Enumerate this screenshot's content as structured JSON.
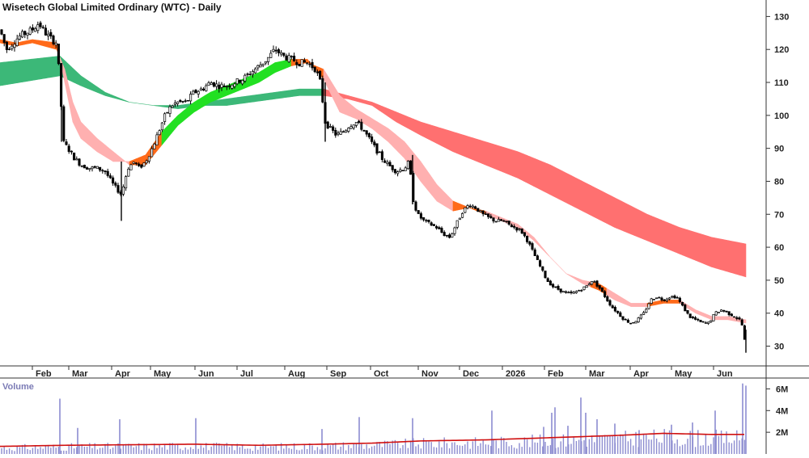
{
  "chart_data": {
    "type": "line",
    "title": "Wisetech Global Limited Ordinary (WTC) - Daily",
    "volume_label": "Volume",
    "price_axis": {
      "ticks": [
        30,
        40,
        50,
        60,
        70,
        80,
        90,
        100,
        110,
        120,
        130
      ],
      "ylim": [
        24,
        135
      ]
    },
    "volume_axis": {
      "ticks": [
        2000000,
        4000000,
        6000000
      ],
      "tick_labels": [
        "2M",
        "4M",
        "6M"
      ],
      "ylim": [
        0,
        7000000
      ]
    },
    "x_axis": {
      "labels": [
        "Feb",
        "Mar",
        "Apr",
        "May",
        "Jun",
        "Jul",
        "Aug",
        "Sep",
        "Oct",
        "Nov",
        "Dec",
        "2026",
        "Feb",
        "Mar",
        "Apr",
        "May",
        "Jun"
      ]
    },
    "colors": {
      "short_ribbon_up": "#22e022",
      "short_ribbon_down": "#ff6a1a",
      "short_ribbon_neutral": "#ffb0b0",
      "long_ribbon_up": "#3cb878",
      "long_ribbon_down": "#ff7070",
      "volume_bar": "#8c8cd0",
      "volume_ma": "#d01010",
      "candle": "#000000"
    },
    "price_keypoints": [
      [
        0,
        126
      ],
      [
        8,
        120
      ],
      [
        16,
        122
      ],
      [
        24,
        124
      ],
      [
        32,
        125
      ],
      [
        40,
        126
      ],
      [
        48,
        128
      ],
      [
        56,
        125
      ],
      [
        64,
        123
      ],
      [
        70,
        122
      ],
      [
        74,
        110
      ],
      [
        78,
        92
      ],
      [
        84,
        90
      ],
      [
        92,
        87
      ],
      [
        100,
        85
      ],
      [
        110,
        84
      ],
      [
        120,
        84
      ],
      [
        130,
        83
      ],
      [
        140,
        79
      ],
      [
        150,
        76
      ],
      [
        158,
        84
      ],
      [
        166,
        86
      ],
      [
        172,
        84
      ],
      [
        180,
        86
      ],
      [
        188,
        90
      ],
      [
        196,
        95
      ],
      [
        204,
        100
      ],
      [
        212,
        103
      ],
      [
        220,
        104
      ],
      [
        230,
        104
      ],
      [
        240,
        107
      ],
      [
        250,
        108
      ],
      [
        260,
        110
      ],
      [
        270,
        109
      ],
      [
        280,
        109
      ],
      [
        290,
        110
      ],
      [
        300,
        111
      ],
      [
        310,
        113
      ],
      [
        320,
        115
      ],
      [
        330,
        117
      ],
      [
        340,
        120
      ],
      [
        350,
        118
      ],
      [
        360,
        117
      ],
      [
        370,
        116
      ],
      [
        380,
        116
      ],
      [
        390,
        114
      ],
      [
        396,
        110
      ],
      [
        402,
        98
      ],
      [
        408,
        96
      ],
      [
        416,
        94
      ],
      [
        424,
        95
      ],
      [
        432,
        97
      ],
      [
        440,
        98
      ],
      [
        448,
        96
      ],
      [
        456,
        93
      ],
      [
        464,
        90
      ],
      [
        472,
        87
      ],
      [
        480,
        85
      ],
      [
        490,
        83
      ],
      [
        500,
        84
      ],
      [
        506,
        86
      ],
      [
        510,
        75
      ],
      [
        516,
        70
      ],
      [
        524,
        68
      ],
      [
        532,
        67
      ],
      [
        540,
        66
      ],
      [
        548,
        64
      ],
      [
        556,
        63
      ],
      [
        564,
        67
      ],
      [
        572,
        71
      ],
      [
        580,
        73
      ],
      [
        588,
        72
      ],
      [
        596,
        70
      ],
      [
        604,
        69
      ],
      [
        612,
        68
      ],
      [
        620,
        68
      ],
      [
        628,
        67
      ],
      [
        636,
        66
      ],
      [
        644,
        65
      ],
      [
        652,
        62
      ],
      [
        660,
        58
      ],
      [
        668,
        54
      ],
      [
        676,
        50
      ],
      [
        684,
        48
      ],
      [
        692,
        47
      ],
      [
        700,
        46
      ],
      [
        708,
        46
      ],
      [
        716,
        47
      ],
      [
        724,
        48
      ],
      [
        732,
        50
      ],
      [
        740,
        48
      ],
      [
        748,
        45
      ],
      [
        756,
        42
      ],
      [
        764,
        40
      ],
      [
        772,
        38
      ],
      [
        780,
        37
      ],
      [
        788,
        38
      ],
      [
        796,
        40
      ],
      [
        804,
        44
      ],
      [
        812,
        45
      ],
      [
        820,
        44
      ],
      [
        828,
        45
      ],
      [
        836,
        45
      ],
      [
        844,
        42
      ],
      [
        852,
        39
      ],
      [
        860,
        38
      ],
      [
        868,
        37
      ],
      [
        876,
        37
      ],
      [
        884,
        40
      ],
      [
        892,
        41
      ],
      [
        900,
        40
      ],
      [
        908,
        39
      ],
      [
        914,
        38
      ],
      [
        918,
        36
      ],
      [
        922,
        29
      ]
    ],
    "short_ribbon_upper": [
      [
        0,
        123
      ],
      [
        20,
        122
      ],
      [
        40,
        123
      ],
      [
        70,
        122
      ],
      [
        80,
        110
      ],
      [
        90,
        98
      ],
      [
        100,
        93
      ],
      [
        120,
        89
      ],
      [
        140,
        86
      ],
      [
        160,
        86
      ],
      [
        180,
        88
      ],
      [
        200,
        95
      ],
      [
        220,
        100
      ],
      [
        240,
        104
      ],
      [
        260,
        107
      ],
      [
        280,
        109
      ],
      [
        300,
        111
      ],
      [
        320,
        113
      ],
      [
        340,
        116
      ],
      [
        360,
        117
      ],
      [
        380,
        117
      ],
      [
        400,
        111
      ],
      [
        420,
        101
      ],
      [
        440,
        99
      ],
      [
        460,
        96
      ],
      [
        480,
        92
      ],
      [
        500,
        87
      ],
      [
        520,
        80
      ],
      [
        540,
        74
      ],
      [
        560,
        71
      ],
      [
        580,
        72
      ],
      [
        600,
        71
      ],
      [
        620,
        69
      ],
      [
        640,
        67
      ],
      [
        660,
        63
      ],
      [
        680,
        57
      ],
      [
        700,
        52
      ],
      [
        720,
        50
      ],
      [
        740,
        49
      ],
      [
        760,
        46
      ],
      [
        780,
        43
      ],
      [
        800,
        43
      ],
      [
        820,
        44
      ],
      [
        840,
        44
      ],
      [
        860,
        41
      ],
      [
        880,
        39
      ],
      [
        900,
        39
      ],
      [
        922,
        38
      ]
    ],
    "short_ribbon_lower": [
      [
        0,
        122
      ],
      [
        20,
        121
      ],
      [
        40,
        122
      ],
      [
        70,
        120
      ],
      [
        80,
        114
      ],
      [
        90,
        104
      ],
      [
        100,
        98
      ],
      [
        120,
        93
      ],
      [
        140,
        89
      ],
      [
        160,
        85
      ],
      [
        180,
        85
      ],
      [
        200,
        91
      ],
      [
        220,
        97
      ],
      [
        240,
        101
      ],
      [
        260,
        104
      ],
      [
        280,
        106
      ],
      [
        300,
        108
      ],
      [
        320,
        110
      ],
      [
        340,
        113
      ],
      [
        360,
        115
      ],
      [
        380,
        116
      ],
      [
        400,
        114
      ],
      [
        420,
        106
      ],
      [
        440,
        102
      ],
      [
        460,
        99
      ],
      [
        480,
        96
      ],
      [
        500,
        92
      ],
      [
        520,
        86
      ],
      [
        540,
        79
      ],
      [
        560,
        74
      ],
      [
        580,
        72
      ],
      [
        600,
        70
      ],
      [
        620,
        68
      ],
      [
        640,
        66
      ],
      [
        660,
        62
      ],
      [
        680,
        57
      ],
      [
        700,
        52
      ],
      [
        720,
        49
      ],
      [
        740,
        47
      ],
      [
        760,
        44
      ],
      [
        780,
        42
      ],
      [
        800,
        42
      ],
      [
        820,
        43
      ],
      [
        840,
        43
      ],
      [
        860,
        40
      ],
      [
        880,
        38
      ],
      [
        900,
        38
      ],
      [
        922,
        37
      ]
    ],
    "long_ribbon_upper": [
      [
        0,
        116
      ],
      [
        74,
        118
      ],
      [
        100,
        112
      ],
      [
        130,
        107
      ],
      [
        160,
        104
      ],
      [
        190,
        103
      ],
      [
        220,
        103
      ],
      [
        250,
        104
      ],
      [
        280,
        105
      ],
      [
        310,
        106
      ],
      [
        340,
        107
      ],
      [
        370,
        108
      ],
      [
        400,
        108
      ],
      [
        430,
        106
      ],
      [
        460,
        104
      ],
      [
        490,
        101
      ],
      [
        520,
        98
      ],
      [
        560,
        95
      ],
      [
        600,
        92
      ],
      [
        640,
        89
      ],
      [
        680,
        85
      ],
      [
        720,
        80
      ],
      [
        760,
        75
      ],
      [
        800,
        70
      ],
      [
        840,
        66
      ],
      [
        880,
        63
      ],
      [
        922,
        61
      ]
    ],
    "long_ribbon_lower": [
      [
        0,
        109
      ],
      [
        74,
        112
      ],
      [
        100,
        109
      ],
      [
        130,
        106
      ],
      [
        160,
        104
      ],
      [
        190,
        103
      ],
      [
        220,
        102
      ],
      [
        250,
        103
      ],
      [
        280,
        103
      ],
      [
        310,
        104
      ],
      [
        340,
        105
      ],
      [
        370,
        106
      ],
      [
        400,
        106
      ],
      [
        430,
        105
      ],
      [
        460,
        103
      ],
      [
        490,
        98
      ],
      [
        520,
        94
      ],
      [
        560,
        89
      ],
      [
        600,
        85
      ],
      [
        640,
        81
      ],
      [
        680,
        76
      ],
      [
        720,
        71
      ],
      [
        760,
        66
      ],
      [
        800,
        62
      ],
      [
        840,
        58
      ],
      [
        880,
        54
      ],
      [
        922,
        51
      ]
    ],
    "volume_ma_keypoints": [
      [
        0,
        700000
      ],
      [
        80,
        800000
      ],
      [
        160,
        850000
      ],
      [
        240,
        900000
      ],
      [
        320,
        800000
      ],
      [
        400,
        900000
      ],
      [
        460,
        1000000
      ],
      [
        520,
        1200000
      ],
      [
        600,
        1300000
      ],
      [
        680,
        1500000
      ],
      [
        760,
        1700000
      ],
      [
        820,
        1900000
      ],
      [
        880,
        1800000
      ],
      [
        922,
        1800000
      ]
    ],
    "volume_spikes": [
      [
        74,
        5100000
      ],
      [
        96,
        2400000
      ],
      [
        148,
        3200000
      ],
      [
        242,
        3300000
      ],
      [
        398,
        2300000
      ],
      [
        444,
        3400000
      ],
      [
        510,
        3300000
      ],
      [
        608,
        4000000
      ],
      [
        672,
        2500000
      ],
      [
        682,
        3800000
      ],
      [
        686,
        4300000
      ],
      [
        702,
        2600000
      ],
      [
        718,
        5200000
      ],
      [
        724,
        3800000
      ],
      [
        738,
        3200000
      ],
      [
        760,
        2800000
      ],
      [
        790,
        2200000
      ],
      [
        830,
        2700000
      ],
      [
        856,
        2900000
      ],
      [
        884,
        4000000
      ],
      [
        918,
        6500000
      ],
      [
        922,
        6300000
      ]
    ]
  }
}
